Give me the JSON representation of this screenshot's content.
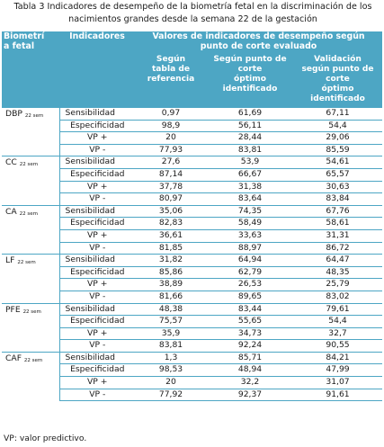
{
  "caption": {
    "line1": "Tabla 3 Indicadores de desempeño de la biometría fetal en la discriminación de los",
    "line2": "nacimientos grandes desde la semana 22 de la gestación"
  },
  "headers": {
    "biometria_line1": "Biometrí",
    "biometria_line2": "a fetal",
    "indicadores": "Indicadores",
    "span_line1": "Valores de indicadores de desempeño según",
    "span_line2": "punto de corte evaluado",
    "col1": [
      "Según",
      "tabla de",
      "referencia"
    ],
    "col2": [
      "Según punto de",
      "corte",
      "óptimo",
      "identificado"
    ],
    "col3": [
      "Validación",
      "según punto de",
      "corte",
      "óptimo",
      "identificado"
    ]
  },
  "groups": [
    {
      "name": "DBP",
      "sub": "22 sem",
      "rows": [
        {
          "ind": "Sensibilidad",
          "v": [
            "0,97",
            "61,69",
            "67,11"
          ]
        },
        {
          "ind": "Especificidad",
          "v": [
            "98,9",
            "56,11",
            "54,4"
          ]
        },
        {
          "ind": "VP +",
          "v": [
            "20",
            "28,44",
            "29,06"
          ]
        },
        {
          "ind": "VP -",
          "v": [
            "77,93",
            "83,81",
            "85,59"
          ]
        }
      ]
    },
    {
      "name": "CC",
      "sub": "22 sem",
      "rows": [
        {
          "ind": "Sensibilidad",
          "v": [
            "27,6",
            "53,9",
            "54,61"
          ]
        },
        {
          "ind": "Especificidad",
          "v": [
            "87,14",
            "66,67",
            "65,57"
          ]
        },
        {
          "ind": "VP +",
          "v": [
            "37,78",
            "31,38",
            "30,63"
          ]
        },
        {
          "ind": "VP -",
          "v": [
            "80,97",
            "83,64",
            "83,84"
          ]
        }
      ]
    },
    {
      "name": "CA",
      "sub": "22 sem",
      "rows": [
        {
          "ind": "Sensibilidad",
          "v": [
            "35,06",
            "74,35",
            "67,76"
          ]
        },
        {
          "ind": "Especificidad",
          "v": [
            "82,83",
            "58,49",
            "58,61"
          ]
        },
        {
          "ind": "VP +",
          "v": [
            "36,61",
            "33,63",
            "31,31"
          ]
        },
        {
          "ind": "VP -",
          "v": [
            "81,85",
            "88,97",
            "86,72"
          ]
        }
      ]
    },
    {
      "name": "LF",
      "sub": "22 sem",
      "rows": [
        {
          "ind": "Sensibilidad",
          "v": [
            "31,82",
            "64,94",
            "64,47"
          ]
        },
        {
          "ind": "Especificidad",
          "v": [
            "85,86",
            "62,79",
            "48,35"
          ]
        },
        {
          "ind": "VP +",
          "v": [
            "38,89",
            "26,53",
            "25,79"
          ]
        },
        {
          "ind": "VP -",
          "v": [
            "81,66",
            "89,65",
            "83,02"
          ]
        }
      ]
    },
    {
      "name": "PFE",
      "sub": "22 sem",
      "rows": [
        {
          "ind": "Sensibilidad",
          "v": [
            "48,38",
            "83,44",
            "79,61"
          ]
        },
        {
          "ind": "Especificidad",
          "v": [
            "75,57",
            "55,65",
            "54,4"
          ]
        },
        {
          "ind": "VP +",
          "v": [
            "35,9",
            "34,73",
            "32,7"
          ]
        },
        {
          "ind": "VP -",
          "v": [
            "83,81",
            "92,24",
            "90,55"
          ]
        }
      ]
    },
    {
      "name": "CAF",
      "sub": "22 sem",
      "rows": [
        {
          "ind": "Sensibilidad",
          "v": [
            "1,3",
            "85,71",
            "84,21"
          ]
        },
        {
          "ind": "Especificidad",
          "v": [
            "98,53",
            "48,94",
            "47,99"
          ]
        },
        {
          "ind": "VP +",
          "v": [
            "20",
            "32,2",
            "31,07"
          ]
        },
        {
          "ind": "VP -",
          "v": [
            "77,92",
            "92,37",
            "91,61"
          ]
        }
      ]
    }
  ],
  "footnote": "VP: valor predictivo."
}
